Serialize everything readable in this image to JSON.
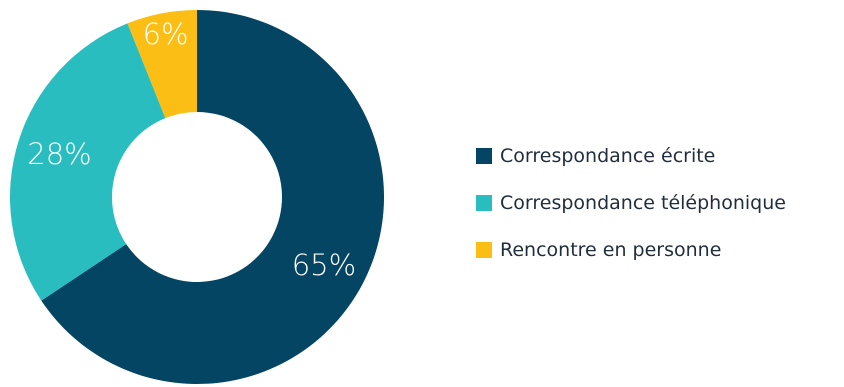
{
  "chart_data": {
    "type": "pie",
    "title": "",
    "categories": [
      "Correspondance écrite",
      "Correspondance téléphonique",
      "Rencontre en personne"
    ],
    "values": [
      65,
      28,
      6
    ],
    "labels": [
      "65%",
      "28%",
      "6%"
    ],
    "colors": [
      "#044563",
      "#29bdc0",
      "#fbbe14"
    ],
    "legend_position": "right",
    "donut": true
  }
}
